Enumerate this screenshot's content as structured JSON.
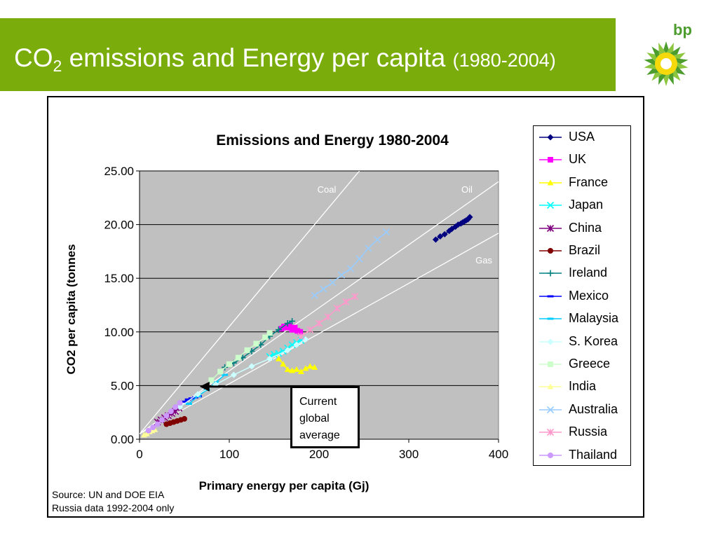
{
  "slide": {
    "title_main": "CO",
    "title_sub": "2",
    "title_rest": " emissions and Energy per capita ",
    "title_years": "(1980-2004)",
    "logo_text": "bp",
    "callout_lines": [
      "Current",
      "global",
      "average"
    ],
    "source_lines": [
      "Source: UN and DOE EIA",
      "Russia data 1992-2004 only"
    ]
  },
  "colors": {
    "title_bar": "#7aad0b",
    "plot_bg": "#c0c0c0",
    "logo_green": "#4c9c2e",
    "logo_yellow": "#f5d90a"
  },
  "chart_data": {
    "type": "scatter",
    "title": "Emissions  and Energy 1980-2004",
    "xlabel": "Primary energy per capita (Gj)",
    "ylabel": "CO2 per capita (tonnes",
    "xlim": [
      0,
      400
    ],
    "ylim": [
      0,
      25
    ],
    "x_ticks": [
      "0",
      "100",
      "200",
      "300",
      "400"
    ],
    "y_ticks": [
      "0.00",
      "5.00",
      "10.00",
      "15.00",
      "20.00",
      "25.00"
    ],
    "grid": "horizontal",
    "legend_position": "right",
    "reference_lines": [
      {
        "name": "Coal",
        "x": [
          0,
          245
        ],
        "y": [
          0.5,
          25
        ]
      },
      {
        "name": "Oil",
        "x": [
          0,
          400
        ],
        "y": [
          0.5,
          24
        ]
      },
      {
        "name": "Gas",
        "x": [
          0,
          400
        ],
        "y": [
          0.5,
          19.2
        ]
      }
    ],
    "global_average": {
      "x": 67,
      "y": 4.9
    },
    "series": [
      {
        "name": "USA",
        "color": "#000080",
        "marker": "diamond",
        "x": [
          330,
          335,
          340,
          345,
          348,
          352,
          355,
          358,
          360,
          362,
          364,
          366,
          368
        ],
        "y": [
          18.6,
          18.9,
          19.1,
          19.4,
          19.6,
          19.8,
          20.0,
          20.1,
          20.2,
          20.3,
          20.4,
          20.5,
          20.7
        ]
      },
      {
        "name": "UK",
        "color": "#ff00ff",
        "marker": "square",
        "x": [
          158,
          161,
          164,
          167,
          170,
          173,
          176,
          179
        ],
        "y": [
          10.3,
          10.5,
          10.4,
          10.6,
          10.2,
          10.4,
          10.1,
          10.0
        ]
      },
      {
        "name": "France",
        "color": "#ffff00",
        "marker": "triangle",
        "x": [
          155,
          160,
          165,
          170,
          175,
          180,
          185,
          190,
          195
        ],
        "y": [
          7.5,
          7.0,
          6.5,
          6.4,
          6.5,
          6.3,
          6.6,
          6.8,
          6.7
        ]
      },
      {
        "name": "Japan",
        "color": "#00ffff",
        "marker": "x",
        "x": [
          145,
          150,
          155,
          160,
          165,
          170,
          175,
          180
        ],
        "y": [
          7.7,
          7.9,
          8.0,
          8.2,
          8.5,
          8.8,
          9.0,
          9.2
        ]
      },
      {
        "name": "China",
        "color": "#800080",
        "marker": "star",
        "x": [
          20,
          24,
          28,
          32,
          36,
          40,
          44
        ],
        "y": [
          1.6,
          1.8,
          2.0,
          2.2,
          2.4,
          2.6,
          2.9
        ]
      },
      {
        "name": "Brazil",
        "color": "#800000",
        "marker": "circle",
        "x": [
          30,
          34,
          38,
          42,
          46,
          50
        ],
        "y": [
          1.4,
          1.5,
          1.6,
          1.7,
          1.8,
          1.9
        ]
      },
      {
        "name": "Ireland",
        "color": "#008080",
        "marker": "plus",
        "x": [
          95,
          105,
          115,
          125,
          135,
          145,
          155,
          165,
          170
        ],
        "y": [
          6.7,
          7.1,
          7.6,
          8.2,
          8.8,
          9.6,
          10.2,
          10.8,
          11.0
        ]
      },
      {
        "name": "Mexico",
        "color": "#0000ff",
        "marker": "dash",
        "x": [
          50,
          54,
          58,
          62,
          66
        ],
        "y": [
          3.5,
          3.7,
          3.8,
          3.9,
          4.0
        ]
      },
      {
        "name": "Malaysia",
        "color": "#00ccff",
        "marker": "dash",
        "x": [
          55,
          65,
          75,
          85,
          95
        ],
        "y": [
          3.3,
          4.0,
          4.6,
          5.3,
          6.0
        ]
      },
      {
        "name": "S. Korea",
        "color": "#ccffff",
        "marker": "diamond",
        "x": [
          45,
          65,
          85,
          105,
          125,
          145,
          165,
          175,
          185
        ],
        "y": [
          3.0,
          4.2,
          5.1,
          6.0,
          6.8,
          7.5,
          8.3,
          8.8,
          9.3
        ]
      },
      {
        "name": "Greece",
        "color": "#ccffcc",
        "marker": "square",
        "x": [
          80,
          90,
          100,
          110,
          120,
          130,
          140,
          145
        ],
        "y": [
          5.5,
          6.3,
          7.0,
          7.6,
          8.3,
          8.9,
          9.5,
          9.9
        ]
      },
      {
        "name": "India",
        "color": "#ffff99",
        "marker": "triangle",
        "x": [
          5,
          8,
          11,
          14,
          17
        ],
        "y": [
          0.4,
          0.5,
          0.7,
          0.8,
          0.9
        ]
      },
      {
        "name": "Australia",
        "color": "#99ccff",
        "marker": "x",
        "x": [
          195,
          205,
          215,
          225,
          235,
          245,
          255,
          265,
          275
        ],
        "y": [
          13.4,
          14.0,
          14.6,
          15.3,
          15.9,
          16.8,
          17.8,
          18.6,
          19.3
        ]
      },
      {
        "name": "Russia",
        "color": "#ff99cc",
        "marker": "star",
        "x": [
          180,
          190,
          200,
          210,
          220,
          230,
          240
        ],
        "y": [
          9.6,
          10.2,
          10.8,
          11.4,
          12.2,
          12.8,
          13.3
        ]
      },
      {
        "name": "Thailand",
        "color": "#cc99ff",
        "marker": "circle",
        "x": [
          10,
          15,
          20,
          25,
          30,
          35,
          40,
          45
        ],
        "y": [
          0.8,
          1.1,
          1.4,
          1.8,
          2.2,
          2.6,
          3.0,
          3.4
        ]
      }
    ]
  }
}
